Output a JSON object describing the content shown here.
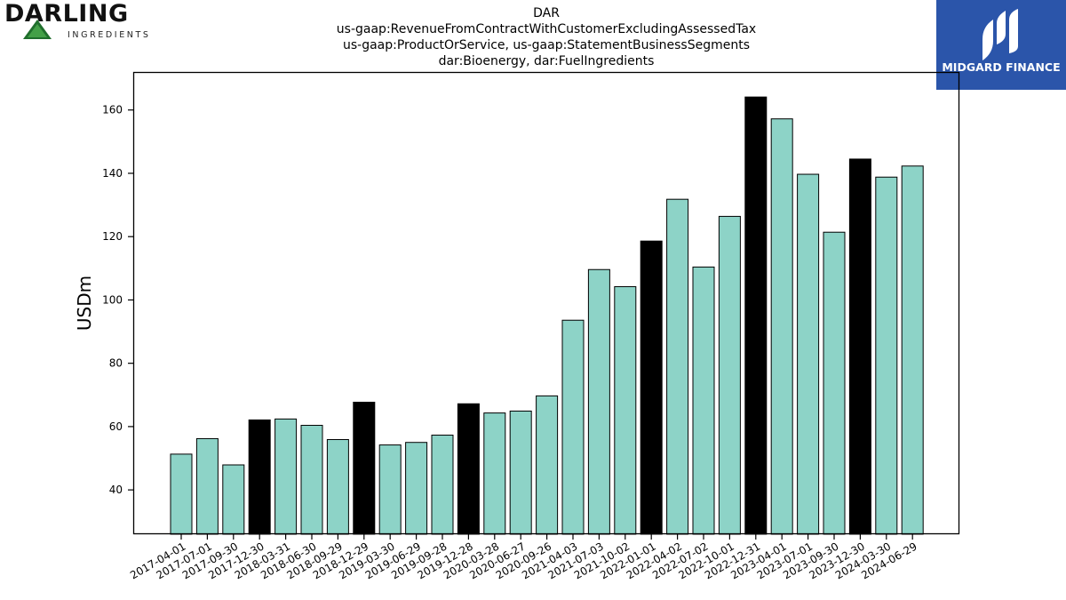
{
  "logo": {
    "word": "DARLING",
    "sub": "INGREDIENTS"
  },
  "title_lines": [
    "DAR",
    "us-gaap:RevenueFromContractWithCustomerExcludingAssessedTax",
    "us-gaap:ProductOrService, us-gaap:StatementBusinessSegments",
    "dar:Bioenergy, dar:FuelIngredients"
  ],
  "brand": {
    "text": "MIDGARD FINANCE",
    "color": "#2b55aa"
  },
  "chart_data": {
    "type": "bar",
    "ylabel": "USDm",
    "xlabel": "",
    "ylim": [
      26,
      172
    ],
    "yticks": [
      40,
      60,
      80,
      100,
      120,
      140,
      160
    ],
    "colors": {
      "quarter": "#8dd3c7",
      "year_end": "#000000"
    },
    "categories": [
      "2017-04-01",
      "2017-07-01",
      "2017-09-30",
      "2017-12-30",
      "2018-03-31",
      "2018-06-30",
      "2018-09-29",
      "2018-12-29",
      "2019-03-30",
      "2019-06-29",
      "2019-09-28",
      "2019-12-28",
      "2020-03-28",
      "2020-06-27",
      "2020-09-26",
      "2021-04-03",
      "2021-07-03",
      "2021-10-02",
      "2022-01-01",
      "2022-04-02",
      "2022-07-02",
      "2022-10-01",
      "2022-12-31",
      "2023-04-01",
      "2023-07-01",
      "2023-09-30",
      "2023-12-30",
      "2024-03-30",
      "2024-06-29"
    ],
    "values": [
      51.3,
      56.2,
      47.9,
      62.1,
      62.4,
      60.4,
      55.9,
      67.7,
      54.2,
      55.0,
      57.3,
      67.2,
      64.3,
      64.9,
      69.7,
      93.6,
      109.6,
      104.2,
      118.6,
      131.8,
      110.4,
      126.4,
      164.1,
      157.2,
      139.7,
      121.4,
      144.5,
      138.8,
      142.3
    ],
    "highlight": [
      false,
      false,
      false,
      true,
      false,
      false,
      false,
      true,
      false,
      false,
      false,
      true,
      false,
      false,
      false,
      false,
      false,
      false,
      true,
      false,
      false,
      false,
      true,
      false,
      false,
      false,
      true,
      false,
      false
    ]
  }
}
